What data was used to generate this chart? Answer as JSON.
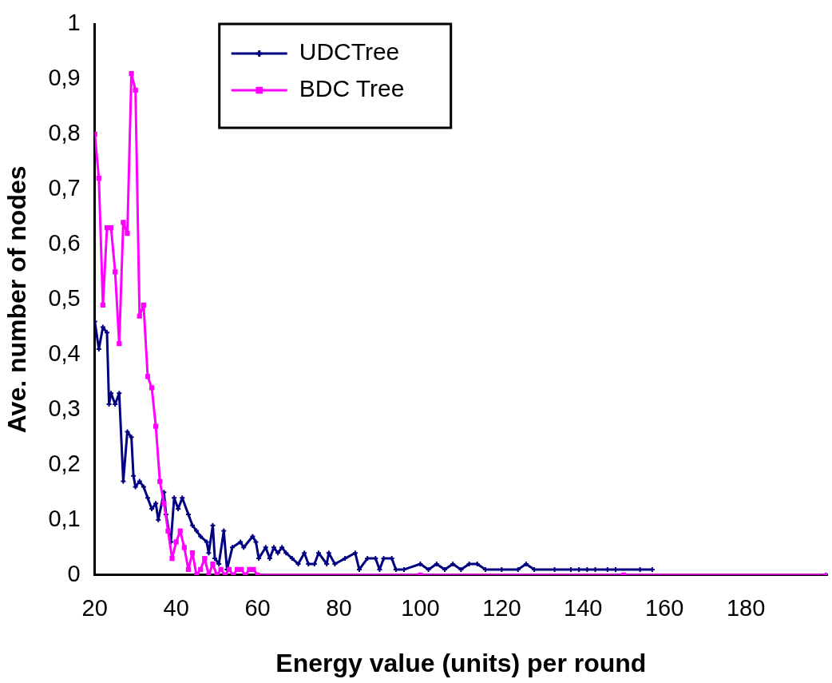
{
  "chart_data": {
    "type": "line",
    "xlabel": "Energy value (units) per round",
    "ylabel": "Ave. number of nodes",
    "xlim": [
      20,
      200
    ],
    "xticks": [
      20,
      40,
      60,
      80,
      100,
      120,
      140,
      160,
      180
    ],
    "ylim": [
      0,
      1
    ],
    "yticks": [
      0,
      {
        "value": 0.1,
        "label": "0,1"
      },
      {
        "value": 0.2,
        "label": "0,2"
      },
      {
        "value": 0.3,
        "label": "0,3"
      },
      {
        "value": 0.4,
        "label": "0,4"
      },
      {
        "value": 0.5,
        "label": "0,5"
      },
      {
        "value": 0.6,
        "label": "0,6"
      },
      {
        "value": 0.7,
        "label": "0,7"
      },
      {
        "value": 0.8,
        "label": "0,8"
      },
      {
        "value": 0.9,
        "label": "0,9"
      },
      1
    ],
    "grid": false,
    "legend": "top",
    "series": [
      {
        "name": "UDCTree",
        "color": "#000080",
        "marker": "cross",
        "x": [
          20,
          21,
          22,
          23,
          23.5,
          24,
          25,
          26,
          27,
          28,
          29,
          29.5,
          30,
          31,
          32,
          33,
          34,
          35,
          35.6,
          37,
          37.5,
          38.7,
          39.5,
          40.5,
          41.5,
          43,
          44,
          45,
          46,
          47.5,
          48,
          49,
          49.5,
          50.5,
          51.7,
          52.5,
          53.8,
          55.8,
          56.6,
          58.8,
          59.6,
          60.3,
          62,
          63,
          64,
          65,
          66,
          67,
          68.5,
          70,
          71.5,
          72.5,
          74,
          75,
          77,
          77.5,
          79,
          81.5,
          84,
          85,
          87,
          89,
          90,
          91,
          93,
          94,
          96,
          100,
          102,
          104,
          106,
          108,
          110,
          112,
          114,
          116,
          120,
          124,
          126,
          128,
          133,
          137,
          139,
          141,
          143,
          146,
          148,
          154,
          157
        ],
        "values": [
          0.46,
          0.41,
          0.45,
          0.44,
          0.31,
          0.33,
          0.31,
          0.33,
          0.17,
          0.26,
          0.25,
          0.18,
          0.16,
          0.17,
          0.16,
          0.14,
          0.12,
          0.13,
          0.1,
          0.15,
          0.11,
          0.06,
          0.14,
          0.12,
          0.14,
          0.11,
          0.09,
          0.08,
          0.07,
          0.06,
          0.04,
          0.09,
          0.03,
          0.02,
          0.08,
          0.01,
          0.05,
          0.06,
          0.05,
          0.07,
          0.06,
          0.03,
          0.05,
          0.03,
          0.05,
          0.04,
          0.05,
          0.04,
          0.03,
          0.02,
          0.04,
          0.02,
          0.02,
          0.04,
          0.02,
          0.04,
          0.02,
          0.03,
          0.04,
          0.01,
          0.03,
          0.03,
          0.01,
          0.03,
          0.03,
          0.01,
          0.01,
          0.02,
          0.01,
          0.02,
          0.01,
          0.02,
          0.01,
          0.02,
          0.02,
          0.01,
          0.01,
          0.01,
          0.02,
          0.01,
          0.01,
          0.01,
          0.01,
          0.01,
          0.01,
          0.01,
          0.01,
          0.01,
          0.01
        ]
      },
      {
        "name": "BDC Tree",
        "color": "#ff00ff",
        "marker": "square",
        "x": [
          20,
          21,
          22,
          23,
          24,
          25,
          26,
          27,
          28,
          29,
          30,
          31,
          32,
          33,
          34,
          35,
          36,
          37,
          38,
          39,
          40,
          41,
          42,
          43,
          44,
          45,
          46,
          47,
          48,
          49,
          50,
          51,
          52,
          53,
          54,
          55,
          56,
          57,
          58,
          59,
          60,
          100,
          150,
          200
        ],
        "values": [
          0.8,
          0.72,
          0.49,
          0.63,
          0.63,
          0.55,
          0.42,
          0.64,
          0.62,
          0.91,
          0.88,
          0.47,
          0.49,
          0.36,
          0.34,
          0.27,
          0.17,
          0.13,
          0.08,
          0.03,
          0.06,
          0.08,
          0.05,
          0.01,
          0.04,
          0,
          0.01,
          0.03,
          0,
          0.02,
          0,
          0.01,
          0,
          0.01,
          0,
          0.01,
          0.01,
          0,
          0.01,
          0.01,
          0,
          0,
          0,
          0
        ]
      }
    ]
  }
}
